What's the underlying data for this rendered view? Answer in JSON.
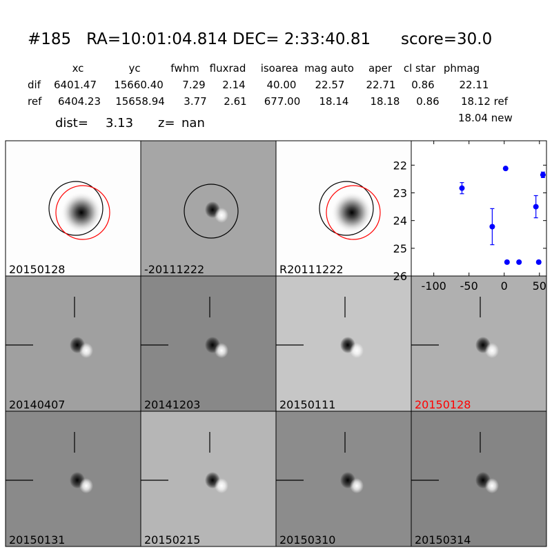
{
  "header": {
    "title": "#185   RA=10:01:04.814 DEC= 2:33:40.81      score=30.0"
  },
  "table": {
    "columns": [
      "xc",
      "yc",
      "fwhm",
      "fluxrad",
      "isoarea",
      "mag auto",
      "aper",
      "cl star",
      "phmag"
    ],
    "rows": [
      {
        "label": "dif",
        "cells": [
          "6401.47",
          "15660.40",
          "7.29",
          "2.14",
          "40.00",
          "22.57",
          "22.71",
          "0.86",
          "22.11"
        ]
      },
      {
        "label": "ref",
        "cells": [
          "6404.23",
          "15658.94",
          "3.77",
          "2.61",
          "677.00",
          "18.14",
          "18.18",
          "0.86",
          "18.12 ref"
        ]
      }
    ],
    "extra": "18.04 new"
  },
  "summary": {
    "dist_label": "dist=",
    "dist": "3.13",
    "z_label": "z=",
    "z": "nan"
  },
  "panels": [
    {
      "label": "20150128"
    },
    {
      "label": "-20111222"
    },
    {
      "label": "R20111222"
    },
    {
      "label": "20140407"
    },
    {
      "label": "20141203"
    },
    {
      "label": "20150111"
    },
    {
      "label": "20150128",
      "color": "red"
    },
    {
      "label": "20150131"
    },
    {
      "label": "20150215"
    },
    {
      "label": "20150310"
    },
    {
      "label": "20150314"
    }
  ],
  "chart_data": {
    "type": "scatter",
    "x": [
      -60,
      -17,
      2,
      4,
      21,
      45,
      49,
      55
    ],
    "values": [
      22.83,
      24.22,
      22.12,
      25.5,
      25.5,
      23.5,
      25.5,
      22.35
    ],
    "errors": [
      0.2,
      0.65,
      0.05,
      0.06,
      0.05,
      0.4,
      0.06,
      0.1
    ],
    "color": "#0000ff",
    "xlim": [
      -132,
      60
    ],
    "ylim": [
      26,
      21.12
    ],
    "xticks": [
      -100,
      -50,
      0,
      50
    ],
    "yticks": [
      22,
      23,
      24,
      25,
      26
    ]
  }
}
